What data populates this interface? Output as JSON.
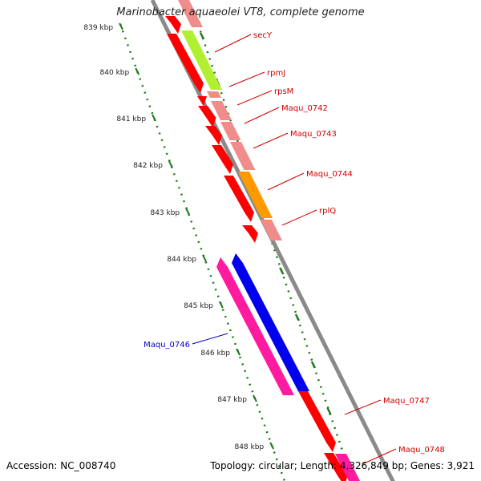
{
  "title": "Marinobacter aquaeolei VT8, complete genome",
  "footer": {
    "accession": "Accession: NC_008740",
    "summary": "Topology: circular; Length: 4,326,849 bp; Genes: 3,921"
  },
  "colors": {
    "backbone": "#8a8a8a",
    "ruler": "#1a7a1a",
    "gene_red": "#ff0000",
    "gene_pink": "#f08c8c",
    "gene_lime": "#b0f030",
    "gene_orange": "#ff9900",
    "gene_magenta": "#ff1aa0",
    "gene_blue": "#0000ee",
    "label_red": "#d00000",
    "label_blue": "#0000cc"
  },
  "ruler_left": {
    "ticks": [
      {
        "label": "839 kbp"
      },
      {
        "label": "840 kbp"
      },
      {
        "label": "841 kbp"
      },
      {
        "label": "842 kbp"
      },
      {
        "label": "843 kbp"
      },
      {
        "label": "844 kbp"
      },
      {
        "label": "845 kbp"
      },
      {
        "label": "846 kbp"
      },
      {
        "label": "847 kbp"
      },
      {
        "label": "848 kbp"
      }
    ]
  },
  "genes": [
    {
      "name": "secY",
      "color": "label_red"
    },
    {
      "name": "rpmJ",
      "color": "label_red"
    },
    {
      "name": "rpsM",
      "color": "label_red"
    },
    {
      "name": "Maqu_0742",
      "color": "label_red"
    },
    {
      "name": "Maqu_0743",
      "color": "label_red"
    },
    {
      "name": "Maqu_0744",
      "color": "label_red"
    },
    {
      "name": "rplQ",
      "color": "label_red"
    },
    {
      "name": "Maqu_0746",
      "color": "label_blue"
    },
    {
      "name": "Maqu_0747",
      "color": "label_red"
    },
    {
      "name": "Maqu_0748",
      "color": "label_red"
    }
  ]
}
